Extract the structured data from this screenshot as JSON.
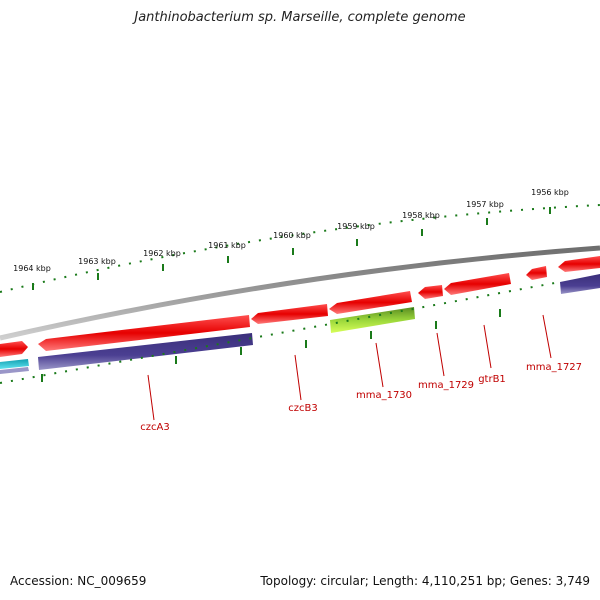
{
  "header": {
    "title": "Janthinobacterium sp. Marseille, complete genome"
  },
  "footer": {
    "accession": "Accession: NC_009659",
    "summary": "Topology: circular; Length: 4,110,251 bp; Genes: 3,749"
  },
  "scale_labels": [
    "1964 kbp",
    "1963 kbp",
    "1962 kbp",
    "1961 kbp",
    "1960 kbp",
    "1959 kbp",
    "1958 kbp",
    "1957 kbp",
    "1956 kbp"
  ],
  "gene_labels": [
    "czcA3",
    "czcB3",
    "mma_1730",
    "mma_1729",
    "gtrB1",
    "mma_1727"
  ],
  "colors": {
    "backbone": "#8c8c8c",
    "forward_gene": "#e81010",
    "protein": "#4a3f8c",
    "rna": "#6fa32a",
    "misc": "#1fb6c9",
    "ticks": "#1a7a1a",
    "label": "#c00000"
  }
}
